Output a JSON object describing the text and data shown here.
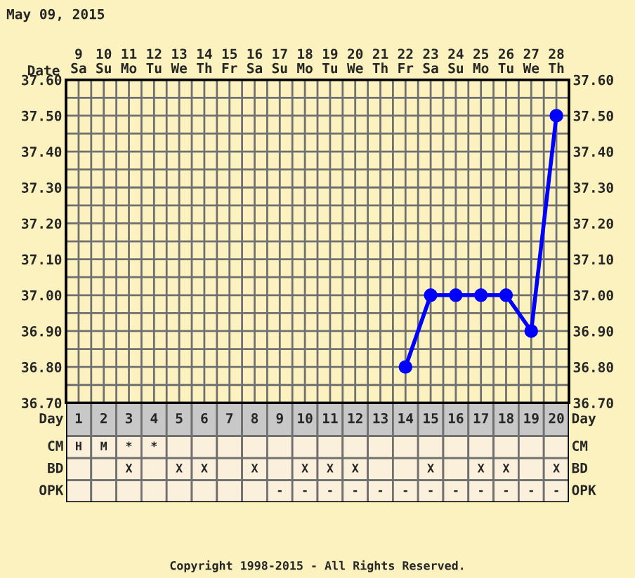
{
  "chart_data": [
    {
      "type": "line",
      "title": "May 09, 2015",
      "xlabel": "Date",
      "categories": [
        "9\nSa",
        "10\nSu",
        "11\nMo",
        "12\nTu",
        "13\nWe",
        "14\nTh",
        "15\nFr",
        "16\nSa",
        "17\nSu",
        "18\nMo",
        "19\nTu",
        "20\nWe",
        "21\nTh",
        "22\nFr",
        "23\nSa",
        "24\nSu",
        "25\nMo",
        "26\nTu",
        "27\nWe",
        "28\nTh"
      ],
      "series": [
        {
          "color": "#0000ff",
          "values": [
            null,
            null,
            null,
            null,
            null,
            null,
            null,
            null,
            null,
            null,
            null,
            null,
            null,
            36.8,
            37.0,
            37.0,
            37.0,
            37.0,
            36.9,
            37.5
          ]
        }
      ],
      "ylim": [
        36.7,
        37.6
      ],
      "yticks": [
        {
          "value": 36.7,
          "label": "36.70"
        },
        {
          "value": 36.75,
          "label": null
        },
        {
          "value": 36.8,
          "label": "36.80"
        },
        {
          "value": 36.85,
          "label": null
        },
        {
          "value": 36.9,
          "label": "36.90"
        },
        {
          "value": 36.95,
          "label": null
        },
        {
          "value": 37.0,
          "label": "37.00"
        },
        {
          "value": 37.05,
          "label": null
        },
        {
          "value": 37.1,
          "label": "37.10"
        },
        {
          "value": 37.15,
          "label": null
        },
        {
          "value": 37.2,
          "label": "37.20"
        },
        {
          "value": 37.25,
          "label": null
        },
        {
          "value": 37.3,
          "label": "37.30"
        },
        {
          "value": 37.35,
          "label": null
        },
        {
          "value": 37.4,
          "label": "37.40"
        },
        {
          "value": 37.45,
          "label": null
        },
        {
          "value": 37.5,
          "label": "37.50"
        },
        {
          "value": 37.55,
          "label": null
        },
        {
          "value": 37.6,
          "label": "37.60"
        }
      ],
      "y2lim": [
        36.7,
        37.6
      ],
      "y2ticks": [
        {
          "value": 36.7,
          "label": "36.70"
        },
        {
          "value": 36.75,
          "label": null
        },
        {
          "value": 36.8,
          "label": "36.80"
        },
        {
          "value": 36.85,
          "label": null
        },
        {
          "value": 36.9,
          "label": "36.90"
        },
        {
          "value": 36.95,
          "label": null
        },
        {
          "value": 37.0,
          "label": "37.00"
        },
        {
          "value": 37.05,
          "label": null
        },
        {
          "value": 37.1,
          "label": "37.10"
        },
        {
          "value": 37.15,
          "label": null
        },
        {
          "value": 37.2,
          "label": "37.20"
        },
        {
          "value": 37.25,
          "label": null
        },
        {
          "value": 37.3,
          "label": "37.30"
        },
        {
          "value": 37.35,
          "label": null
        },
        {
          "value": 37.4,
          "label": "37.40"
        },
        {
          "value": 37.45,
          "label": null
        },
        {
          "value": 37.5,
          "label": "37.50"
        },
        {
          "value": 37.55,
          "label": null
        },
        {
          "value": 37.6,
          "label": "37.60"
        }
      ],
      "grid": true,
      "marker": "circle",
      "line_style": "solid"
    },
    {
      "type": "heatmap",
      "xlabel": "Day",
      "categories": [
        "1",
        "2",
        "3",
        "4",
        "5",
        "6",
        "7",
        "8",
        "9",
        "10",
        "11",
        "12",
        "13",
        "14",
        "15",
        "16",
        "17",
        "18",
        "19",
        "20"
      ],
      "y_categories": [
        "CM",
        "BD",
        "OPK"
      ],
      "y2_categories": [
        "CM",
        "BD",
        "OPK"
      ],
      "cells": [
        [
          null,
          null,
          null,
          null,
          null,
          null,
          null,
          null,
          null,
          null,
          null,
          null,
          null,
          null,
          null,
          null,
          null,
          null,
          null,
          null
        ],
        [
          null,
          null,
          null,
          null,
          null,
          null,
          null,
          null,
          null,
          null,
          null,
          null,
          null,
          null,
          null,
          null,
          null,
          null,
          null,
          null
        ],
        [
          null,
          null,
          null,
          null,
          null,
          null,
          null,
          null,
          null,
          null,
          null,
          null,
          null,
          null,
          null,
          null,
          null,
          null,
          null,
          null
        ]
      ],
      "cell_labels": [
        [
          "H",
          "M",
          "*",
          "*",
          null,
          null,
          null,
          null,
          null,
          null,
          null,
          null,
          null,
          null,
          null,
          null,
          null,
          null,
          null,
          null
        ],
        [
          null,
          null,
          "X",
          null,
          "X",
          "X",
          null,
          "X",
          null,
          "X",
          "X",
          "X",
          null,
          null,
          "X",
          null,
          "X",
          "X",
          null,
          "X"
        ],
        [
          null,
          null,
          null,
          null,
          null,
          null,
          null,
          null,
          "-",
          "-",
          "-",
          "-",
          "-",
          "-",
          "-",
          "-",
          "-",
          "-",
          "-",
          "-"
        ]
      ],
      "annotations": [
        "Copyright 1998-2015 - All Rights Reserved."
      ]
    }
  ]
}
